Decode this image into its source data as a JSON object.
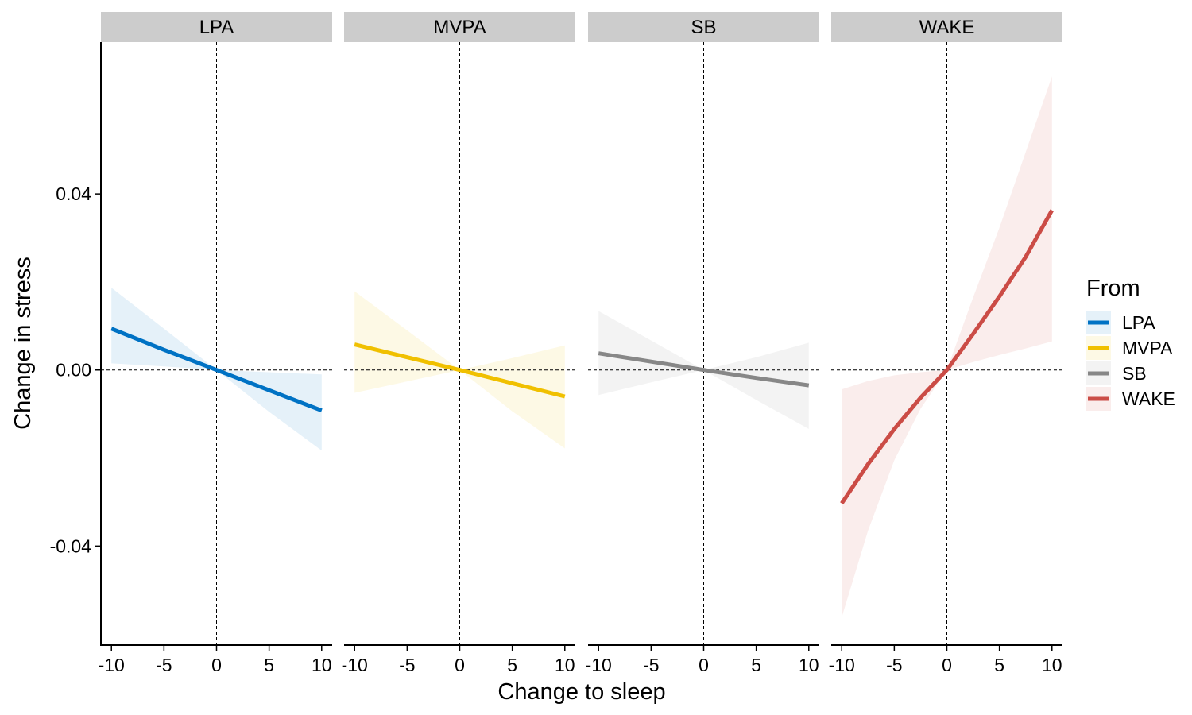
{
  "chart_data": {
    "type": "line",
    "xlabel": "Change to sleep",
    "ylabel": "Change in stress",
    "xlim": [
      -11,
      11
    ],
    "ylim": [
      -0.0625,
      0.0745
    ],
    "x_ticks": [
      -10,
      -5,
      0,
      5,
      10
    ],
    "x_tick_labels": [
      "-10",
      "-5",
      "0",
      "5",
      "10"
    ],
    "y_ticks": [
      -0.04,
      0.0,
      0.04
    ],
    "y_tick_labels": [
      "-0.04",
      "0.00",
      "0.04"
    ],
    "reference_lines": {
      "x": 0,
      "y": 0,
      "style": "dashed"
    },
    "grid": false,
    "legend": {
      "title": "From",
      "placement": "right",
      "entries": [
        "LPA",
        "MVPA",
        "SB",
        "WAKE"
      ]
    },
    "panels": [
      {
        "strip_label": "LPA",
        "color": "#0072c4",
        "fill_color": "#0072c4",
        "x": [
          -10,
          -5,
          0,
          5,
          10
        ],
        "y": [
          0.0094,
          0.0046,
          0.0,
          -0.0046,
          -0.0092
        ],
        "y_lower": [
          0.0015,
          0.0008,
          0.0,
          -0.0095,
          -0.0183
        ],
        "y_upper": [
          0.0187,
          0.0094,
          0.0,
          -0.0005,
          -0.001
        ]
      },
      {
        "strip_label": "MVPA",
        "color": "#f0c000",
        "fill_color": "#f0c000",
        "x": [
          -10,
          -5,
          0,
          5,
          10
        ],
        "y": [
          0.0058,
          0.0029,
          0.0,
          -0.003,
          -0.006
        ],
        "y_lower": [
          -0.0052,
          -0.0026,
          0.0,
          -0.0094,
          -0.0178
        ],
        "y_upper": [
          0.0179,
          0.009,
          0.0,
          0.0027,
          0.0056
        ]
      },
      {
        "strip_label": "SB",
        "color": "#878787",
        "fill_color": "#878787",
        "x": [
          -10,
          -5,
          0,
          5,
          10
        ],
        "y": [
          0.0038,
          0.0019,
          0.0,
          -0.0018,
          -0.0035
        ],
        "y_lower": [
          -0.0057,
          -0.0028,
          0.0,
          -0.0068,
          -0.0134
        ],
        "y_upper": [
          0.0134,
          0.0067,
          0.0,
          0.0029,
          0.0062
        ]
      },
      {
        "strip_label": "WAKE",
        "color": "#cb4c46",
        "fill_color": "#cb4c46",
        "x": [
          -10,
          -7.5,
          -5,
          -2.5,
          0,
          2.5,
          5,
          7.5,
          10
        ],
        "y": [
          -0.0303,
          -0.0214,
          -0.0134,
          -0.0063,
          0.0,
          0.0082,
          0.0167,
          0.0257,
          0.0363
        ],
        "y_lower": [
          -0.0562,
          -0.0365,
          -0.0205,
          -0.0088,
          0.0,
          0.0018,
          0.0034,
          0.0049,
          0.0065
        ],
        "y_upper": [
          -0.0044,
          -0.0025,
          -0.0012,
          -0.0005,
          0.0,
          0.0165,
          0.0323,
          0.0495,
          0.0667
        ]
      }
    ]
  }
}
